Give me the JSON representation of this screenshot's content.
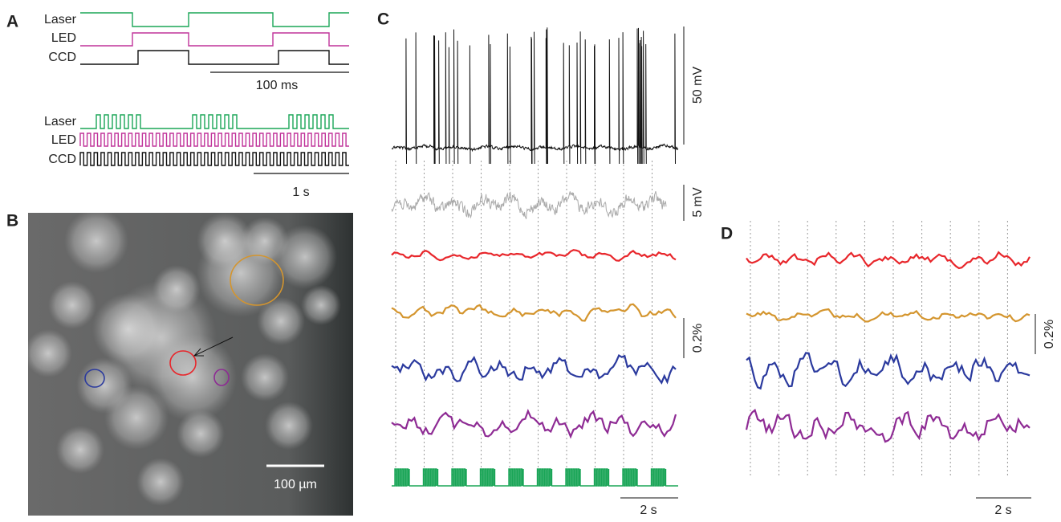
{
  "panel_a": {
    "label": "A",
    "top": {
      "labels": [
        "Laser",
        "LED",
        "CCD"
      ],
      "scale": "100 ms"
    },
    "bottom": {
      "labels": [
        "Laser",
        "LED",
        "CCD"
      ],
      "scale": "1 s"
    }
  },
  "panel_b": {
    "label": "B",
    "scale": "100 µm"
  },
  "panel_c": {
    "label": "C",
    "scales": [
      "50 mV",
      "5 mV",
      "0.2%",
      "2 s"
    ]
  },
  "panel_d": {
    "label": "D",
    "scales": [
      "0.2%",
      "2 s"
    ]
  }
}
